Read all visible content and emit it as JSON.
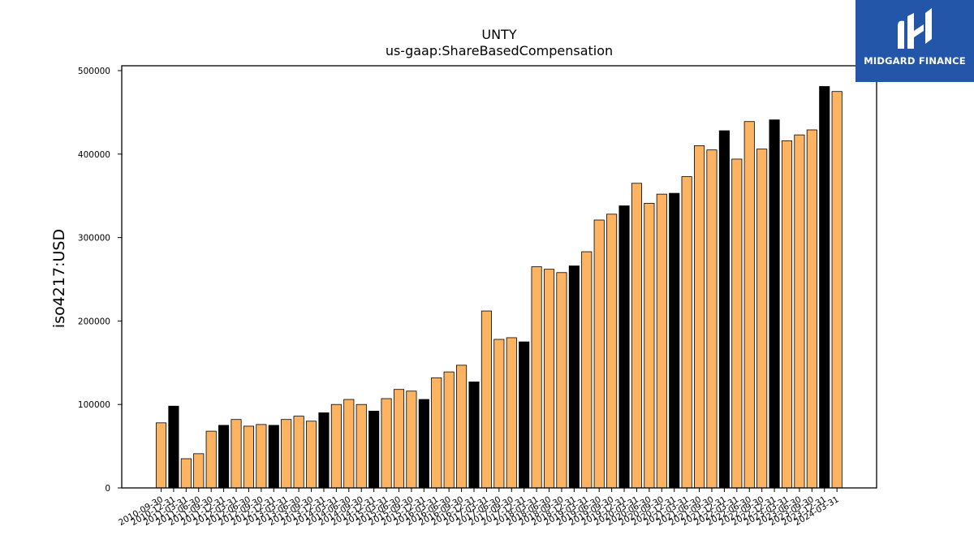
{
  "logo": {
    "text": "MIDGARD FINANCE",
    "color": "#2356a8"
  },
  "chart_data": {
    "type": "bar",
    "title": "UNTY",
    "subtitle": "us-gaap:ShareBasedCompensation",
    "ylabel": "iso4217:USD",
    "xlabel": "",
    "ylim": [
      0,
      500000
    ],
    "yticks": [
      0,
      100000,
      200000,
      300000,
      400000,
      500000
    ],
    "grid": false,
    "colors": {
      "quarterly": "#fdb462",
      "annual": "#000000",
      "edge": "#000000"
    },
    "categories": [
      "2010-09-30",
      "2010-12-31",
      "2011-03-31",
      "2011-06-30",
      "2011-09-30",
      "2011-12-31",
      "2012-03-31",
      "2012-06-30",
      "2012-09-30",
      "2012-12-31",
      "2013-03-31",
      "2013-06-30",
      "2013-09-30",
      "2013-12-31",
      "2014-03-31",
      "2014-06-30",
      "2014-09-30",
      "2014-12-31",
      "2015-03-31",
      "2015-06-30",
      "2015-09-30",
      "2015-12-31",
      "2016-03-31",
      "2016-06-30",
      "2016-09-30",
      "2016-12-31",
      "2017-03-31",
      "2017-06-30",
      "2017-09-30",
      "2017-12-31",
      "2018-03-31",
      "2018-06-30",
      "2018-09-30",
      "2018-12-31",
      "2019-03-31",
      "2019-06-30",
      "2019-09-30",
      "2019-12-31",
      "2020-03-31",
      "2020-06-30",
      "2020-09-30",
      "2020-12-31",
      "2021-03-31",
      "2021-06-30",
      "2021-09-30",
      "2021-12-31",
      "2022-03-31",
      "2022-06-30",
      "2022-09-30",
      "2022-12-31",
      "2023-03-31",
      "2023-06-30",
      "2023-09-30",
      "2023-12-31",
      "2024-03-31"
    ],
    "values": [
      78000,
      98000,
      35000,
      41000,
      68000,
      75000,
      82000,
      74000,
      76000,
      75000,
      82000,
      86000,
      80000,
      90000,
      100000,
      106000,
      100000,
      92000,
      107000,
      118000,
      116000,
      106000,
      132000,
      139000,
      147000,
      127000,
      212000,
      178000,
      180000,
      175000,
      265000,
      262000,
      258000,
      266000,
      283000,
      321000,
      328000,
      338000,
      365000,
      341000,
      352000,
      353000,
      373000,
      410000,
      405000,
      428000,
      394000,
      439000,
      406000,
      441000,
      416000,
      423000,
      429000,
      481000,
      475000
    ],
    "annual": [
      false,
      true,
      false,
      false,
      false,
      true,
      false,
      false,
      false,
      true,
      false,
      false,
      false,
      true,
      false,
      false,
      false,
      true,
      false,
      false,
      false,
      true,
      false,
      false,
      false,
      true,
      false,
      false,
      false,
      true,
      false,
      false,
      false,
      true,
      false,
      false,
      false,
      true,
      false,
      false,
      false,
      true,
      false,
      false,
      false,
      true,
      false,
      false,
      false,
      true,
      false,
      false,
      false,
      true,
      false
    ]
  }
}
